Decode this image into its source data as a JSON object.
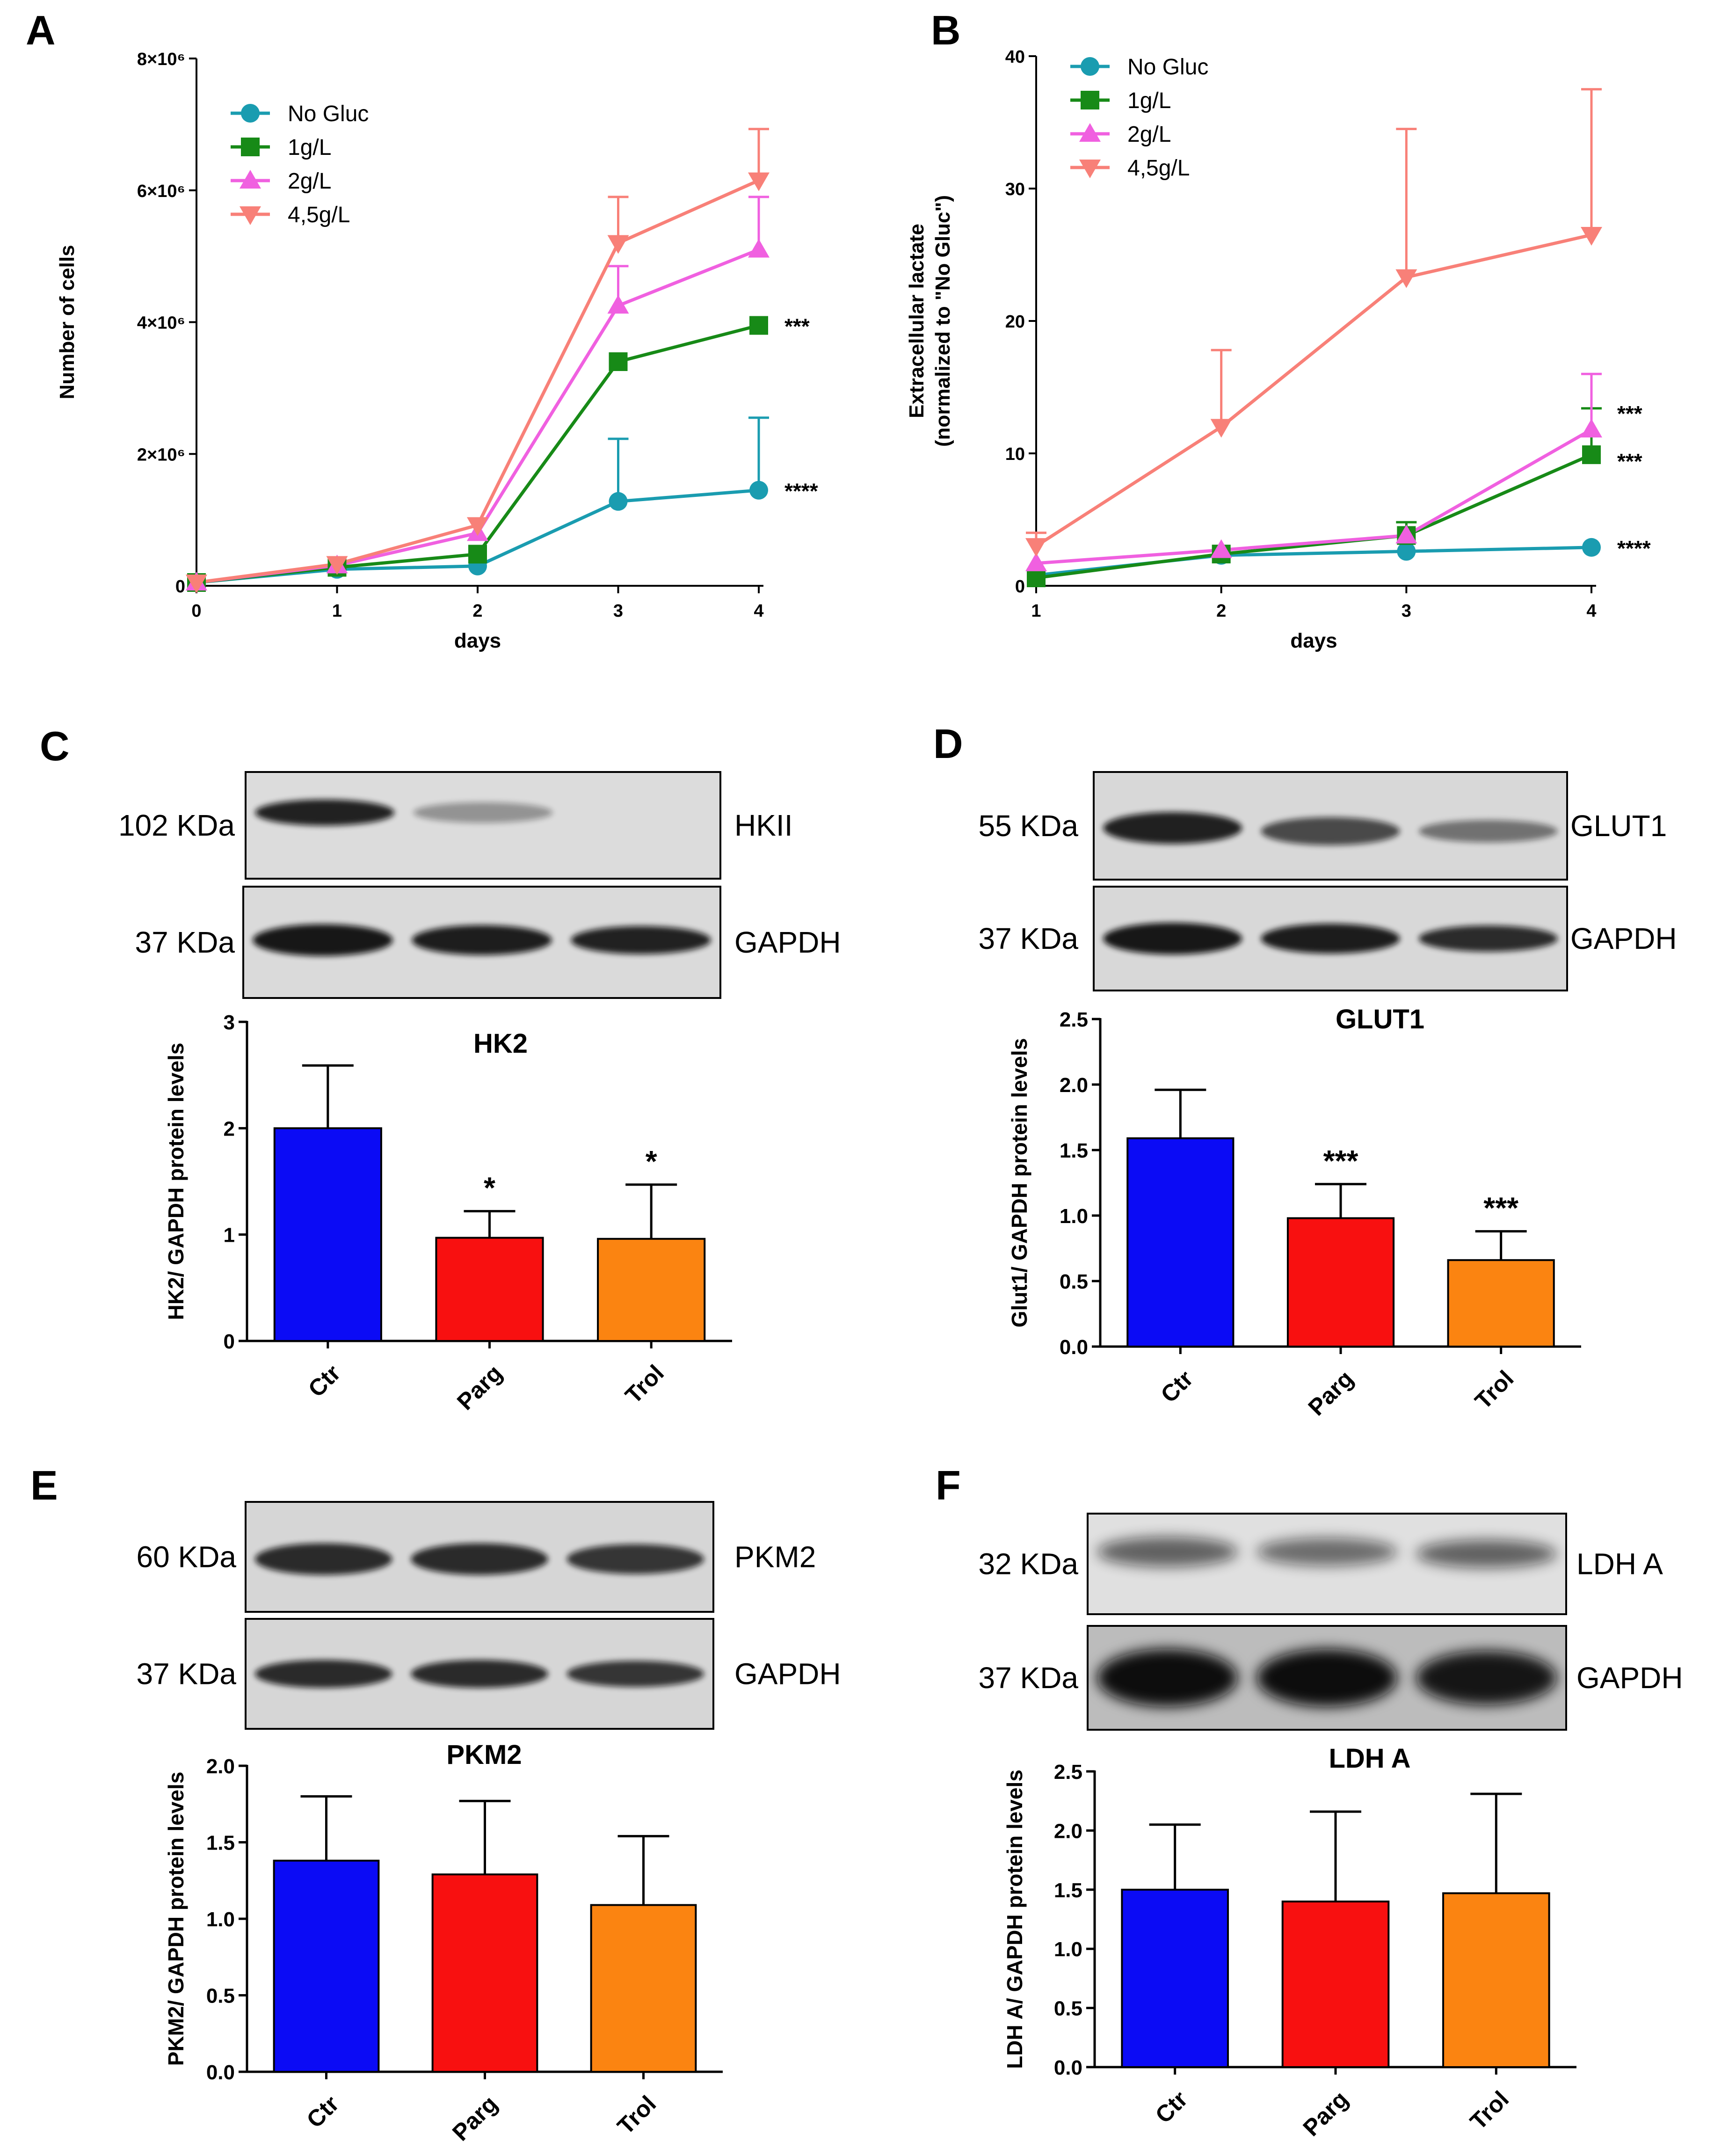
{
  "panels": {
    "A": {
      "label": "A",
      "chart_data": {
        "type": "line",
        "xlabel": "days",
        "ylabel": "Number of cells",
        "x": [
          0,
          1,
          2,
          3,
          4
        ],
        "xticks": [
          "0",
          "1",
          "2",
          "3",
          "4"
        ],
        "ylim": [
          0,
          8000000
        ],
        "yticks": [
          {
            "v": 0,
            "t": "0"
          },
          {
            "v": 2000000,
            "t": "2×10⁶"
          },
          {
            "v": 4000000,
            "t": "4×10⁶"
          },
          {
            "v": 6000000,
            "t": "6×10⁶"
          },
          {
            "v": 8000000,
            "t": "8×10⁶"
          }
        ],
        "legend_position": "top-left",
        "series": [
          {
            "name": "No Gluc",
            "marker": "circle",
            "color": "#1a9cb0",
            "values": [
              50000,
              250000,
              300000,
              1280000,
              1450000
            ],
            "err": [
              0,
              0,
              0,
              950000,
              1100000
            ],
            "sig": "****"
          },
          {
            "name": "1g/L",
            "marker": "square",
            "color": "#178a17",
            "values": [
              50000,
              280000,
              480000,
              3400000,
              3950000
            ],
            "err": [
              0,
              0,
              0,
              0,
              0
            ],
            "sig": "***"
          },
          {
            "name": "2g/L",
            "marker": "triangle-up",
            "color": "#f060e0",
            "values": [
              50000,
              310000,
              800000,
              4250000,
              5100000
            ],
            "err": [
              0,
              0,
              0,
              600000,
              800000
            ],
            "sig": ""
          },
          {
            "name": "4,5g/L",
            "marker": "triangle-down",
            "color": "#f88078",
            "values": [
              50000,
              330000,
              920000,
              5200000,
              6150000
            ],
            "err": [
              0,
              0,
              0,
              700000,
              780000
            ],
            "sig": ""
          }
        ]
      }
    },
    "B": {
      "label": "B",
      "chart_data": {
        "type": "line",
        "xlabel": "days",
        "ylabel": "Extracellular lactate",
        "ylabel2": "(normalized to \"No Gluc\")",
        "x": [
          1,
          2,
          3,
          4
        ],
        "xticks": [
          "1",
          "2",
          "3",
          "4"
        ],
        "ylim": [
          0,
          40
        ],
        "yticks": [
          {
            "v": 0,
            "t": "0"
          },
          {
            "v": 10,
            "t": "10"
          },
          {
            "v": 20,
            "t": "20"
          },
          {
            "v": 30,
            "t": "30"
          },
          {
            "v": 40,
            "t": "40"
          }
        ],
        "legend_position": "top-left",
        "series": [
          {
            "name": "No Gluc",
            "marker": "circle",
            "color": "#1a9cb0",
            "values": [
              0.8,
              2.3,
              2.6,
              2.9
            ],
            "err": [
              0,
              0,
              0,
              0
            ],
            "sig": "****"
          },
          {
            "name": "1g/L",
            "marker": "square",
            "color": "#178a17",
            "values": [
              0.6,
              2.4,
              3.8,
              9.9
            ],
            "err": [
              0,
              0,
              1.0,
              3.5
            ],
            "sig": "***"
          },
          {
            "name": "2g/L",
            "marker": "triangle-up",
            "color": "#f060e0",
            "values": [
              1.7,
              2.7,
              3.8,
              11.8
            ],
            "err": [
              0,
              0,
              0,
              4.2
            ],
            "sig": "***"
          },
          {
            "name": "4,5g/L",
            "marker": "triangle-down",
            "color": "#f88078",
            "values": [
              3.0,
              12.0,
              23.3,
              26.5
            ],
            "err": [
              1.0,
              5.8,
              11.2,
              11.0
            ],
            "sig": ""
          }
        ]
      }
    },
    "C": {
      "label": "C",
      "blot": {
        "top_kda": "102 KDa",
        "top_protein": "HKII",
        "bottom_kda": "37 KDa",
        "bottom_protein": "GAPDH"
      },
      "chart_data": {
        "type": "bar",
        "title": "HK2",
        "ylabel": "HK2/ GAPDH protein levels",
        "categories": [
          "Ctr",
          "Parg",
          "Trol"
        ],
        "values": [
          2.0,
          0.97,
          0.96
        ],
        "errors": [
          0.59,
          0.25,
          0.51
        ],
        "significance": [
          "",
          "*",
          "*"
        ],
        "colors": [
          "#0b0bf5",
          "#f81010",
          "#fb8411"
        ],
        "ylim": [
          0,
          3
        ],
        "yticks": [
          {
            "v": 0,
            "t": "0"
          },
          {
            "v": 1,
            "t": "1"
          },
          {
            "v": 2,
            "t": "2"
          },
          {
            "v": 3,
            "t": "3"
          }
        ]
      }
    },
    "D": {
      "label": "D",
      "blot": {
        "top_kda": "55 KDa",
        "top_protein": "GLUT1",
        "bottom_kda": "37 KDa",
        "bottom_protein": "GAPDH"
      },
      "chart_data": {
        "type": "bar",
        "title": "GLUT1",
        "ylabel": "Glut1/ GAPDH protein levels",
        "categories": [
          "Ctr",
          "Parg",
          "Trol"
        ],
        "values": [
          1.59,
          0.98,
          0.66
        ],
        "errors": [
          0.37,
          0.26,
          0.22
        ],
        "significance": [
          "",
          "***",
          "***"
        ],
        "colors": [
          "#0b0bf5",
          "#f81010",
          "#fb8411"
        ],
        "ylim": [
          0,
          2.5
        ],
        "yticks": [
          {
            "v": 0,
            "t": "0.0"
          },
          {
            "v": 0.5,
            "t": "0.5"
          },
          {
            "v": 1,
            "t": "1.0"
          },
          {
            "v": 1.5,
            "t": "1.5"
          },
          {
            "v": 2,
            "t": "2.0"
          },
          {
            "v": 2.5,
            "t": "2.5"
          }
        ]
      }
    },
    "E": {
      "label": "E",
      "blot": {
        "top_kda": "60 KDa",
        "top_protein": "PKM2",
        "bottom_kda": "37 KDa",
        "bottom_protein": "GAPDH"
      },
      "chart_data": {
        "type": "bar",
        "title": "PKM2",
        "ylabel": "PKM2/ GAPDH protein levels",
        "categories": [
          "Ctr",
          "Parg",
          "Trol"
        ],
        "values": [
          1.38,
          1.29,
          1.09
        ],
        "errors": [
          0.42,
          0.48,
          0.45
        ],
        "significance": [
          "",
          "",
          ""
        ],
        "colors": [
          "#0b0bf5",
          "#f81010",
          "#fb8411"
        ],
        "ylim": [
          0,
          2.0
        ],
        "yticks": [
          {
            "v": 0,
            "t": "0.0"
          },
          {
            "v": 0.5,
            "t": "0.5"
          },
          {
            "v": 1,
            "t": "1.0"
          },
          {
            "v": 1.5,
            "t": "1.5"
          },
          {
            "v": 2,
            "t": "2.0"
          }
        ]
      }
    },
    "F": {
      "label": "F",
      "blot": {
        "top_kda": "32 KDa",
        "top_protein": "LDH A",
        "bottom_kda": "37 KDa",
        "bottom_protein": "GAPDH"
      },
      "chart_data": {
        "type": "bar",
        "title": "LDH A",
        "ylabel": "LDH A/ GAPDH protein levels",
        "categories": [
          "Ctr",
          "Parg",
          "Trol"
        ],
        "values": [
          1.5,
          1.4,
          1.47
        ],
        "errors": [
          0.55,
          0.76,
          0.84
        ],
        "significance": [
          "",
          "",
          ""
        ],
        "colors": [
          "#0b0bf5",
          "#f81010",
          "#fb8411"
        ],
        "ylim": [
          0,
          2.5
        ],
        "yticks": [
          {
            "v": 0,
            "t": "0.0"
          },
          {
            "v": 0.5,
            "t": "0.5"
          },
          {
            "v": 1,
            "t": "1.0"
          },
          {
            "v": 1.5,
            "t": "1.5"
          },
          {
            "v": 2,
            "t": "2.0"
          },
          {
            "v": 2.5,
            "t": "2.5"
          }
        ]
      }
    }
  }
}
